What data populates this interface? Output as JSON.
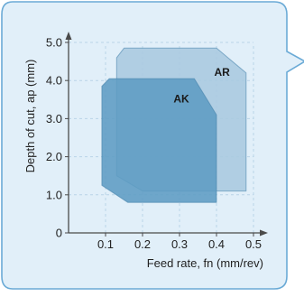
{
  "chart_data": {
    "type": "area",
    "title": "",
    "xlabel": "Feed rate, fn (mm/rev)",
    "ylabel": "Depth of cut, ap (mm)",
    "xlim": [
      0,
      0.5
    ],
    "ylim": [
      0,
      5.0
    ],
    "x_ticks": [
      0.1,
      0.2,
      0.3,
      0.4,
      0.5
    ],
    "x_tick_labels": [
      "0.1",
      "0.2",
      "0.3",
      "0.4",
      "0.5"
    ],
    "y_ticks": [
      0,
      1.0,
      2.0,
      3.0,
      4.0,
      5.0
    ],
    "y_tick_labels": [
      "0",
      "1.0",
      "2.0",
      "3.0",
      "4.0",
      "5.0"
    ],
    "grid": true,
    "regions": [
      {
        "label": "AR",
        "color": "#a9c9df",
        "outline": [
          [
            0.13,
            1.5
          ],
          [
            0.13,
            4.6
          ],
          [
            0.15,
            4.85
          ],
          [
            0.4,
            4.85
          ],
          [
            0.48,
            4.2
          ],
          [
            0.48,
            1.1
          ],
          [
            0.2,
            1.1
          ],
          [
            0.13,
            1.5
          ]
        ],
        "label_at": [
          0.415,
          4.22
        ]
      },
      {
        "label": "AK",
        "color": "#5d9cc3",
        "outline": [
          [
            0.09,
            1.25
          ],
          [
            0.09,
            3.85
          ],
          [
            0.11,
            4.05
          ],
          [
            0.34,
            4.05
          ],
          [
            0.4,
            3.1
          ],
          [
            0.4,
            0.8
          ],
          [
            0.16,
            0.8
          ],
          [
            0.09,
            1.25
          ]
        ],
        "label_at": [
          0.305,
          3.52
        ]
      }
    ]
  }
}
